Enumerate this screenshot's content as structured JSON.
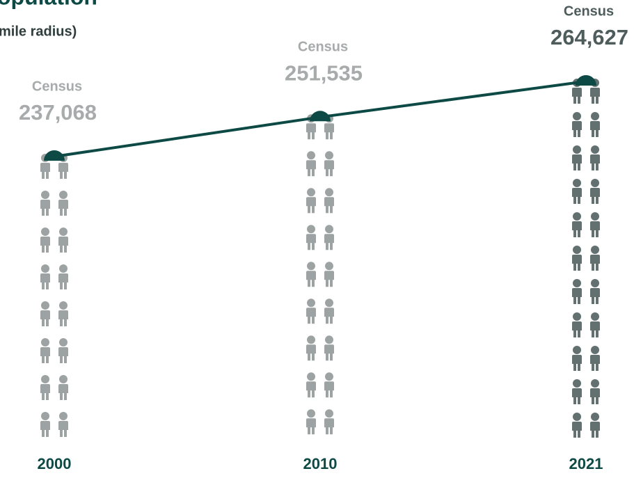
{
  "chart_data": {
    "type": "line",
    "title": "opulation",
    "subtitle": "mile radius)",
    "categories": [
      "2000",
      "2010",
      "2021"
    ],
    "values": [
      237068,
      251535,
      264627
    ],
    "value_labels": [
      "237,068",
      "251,535",
      "264,627"
    ],
    "point_label": "Census",
    "color": "#0d4a45",
    "icon_colors": [
      "#9da2a2",
      "#9da2a2",
      "#627070"
    ],
    "label_colors": [
      "#a7abab",
      "#a7abab",
      "#4e5c5c"
    ]
  }
}
